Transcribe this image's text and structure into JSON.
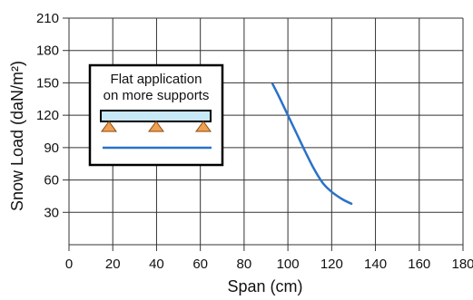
{
  "chart_data": {
    "type": "line",
    "xlabel": "Span (cm)",
    "ylabel": "Snow Load (daN/m²)",
    "xlim": [
      0,
      180
    ],
    "ylim": [
      0,
      210
    ],
    "x_ticks": [
      0,
      20,
      40,
      60,
      80,
      100,
      120,
      140,
      160,
      180
    ],
    "y_ticks": [
      30,
      60,
      90,
      120,
      150,
      180,
      210
    ],
    "grid": true,
    "series": [
      {
        "color": "#2a72c8",
        "x": [
          93,
          96,
          100,
          104,
          108,
          112,
          116,
          120,
          125,
          129
        ],
        "y": [
          149,
          137,
          120,
          103,
          86,
          70,
          57,
          49,
          42,
          38
        ]
      }
    ],
    "inset": {
      "caption_line1": "Flat application",
      "caption_line2": "on more supports",
      "beam_color": "#c8e8f8",
      "support_color": "#f0a050",
      "line_color": "#2a72c8"
    }
  }
}
